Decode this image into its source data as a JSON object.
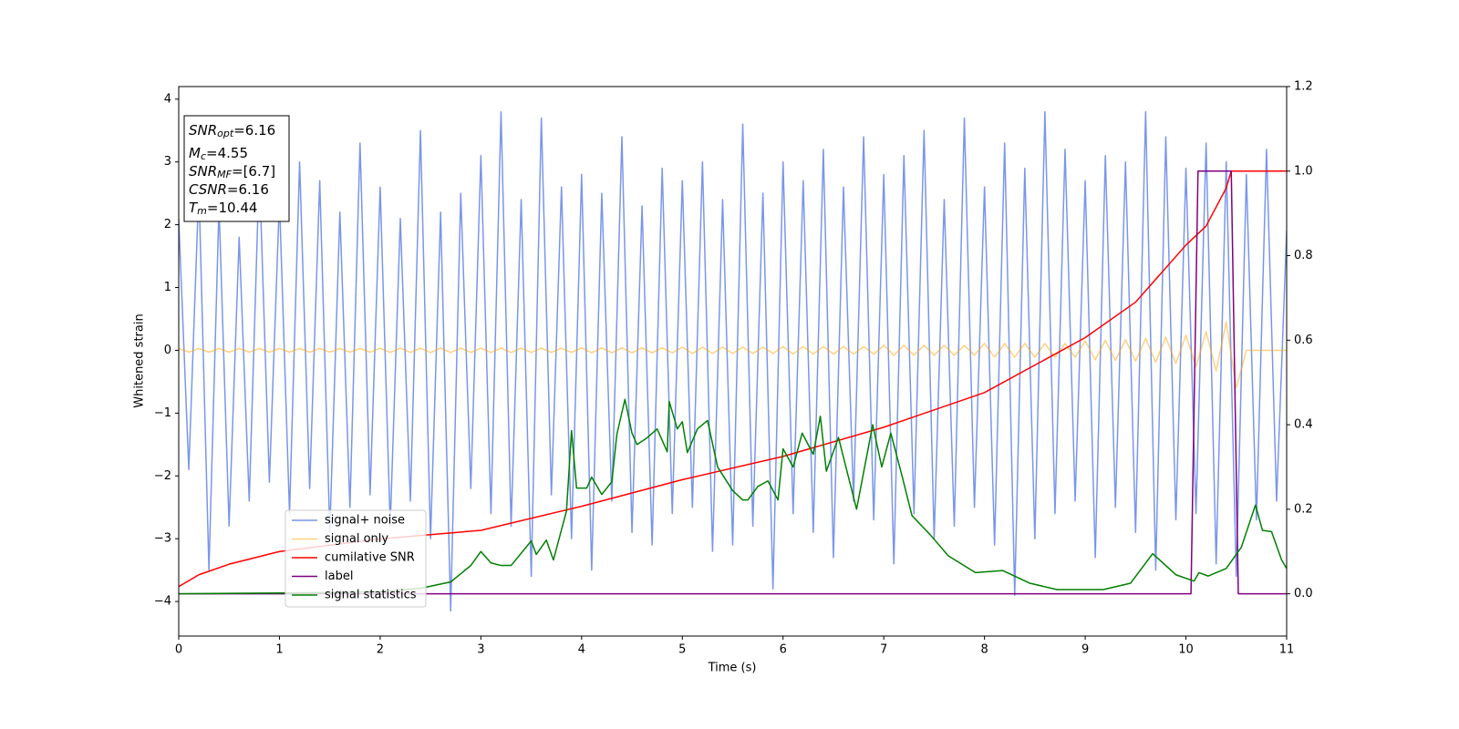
{
  "chart_data": {
    "type": "line",
    "xlabel": "Time (s)",
    "ylabel": "Whitened strain",
    "xlim": [
      0,
      11
    ],
    "xticks": [
      0,
      1,
      2,
      3,
      4,
      5,
      6,
      7,
      8,
      9,
      10,
      11
    ],
    "ylim": [
      -4.55,
      4.2
    ],
    "yticks": [
      {
        "value": -4,
        "label": "−4"
      },
      {
        "value": -3,
        "label": "−3"
      },
      {
        "value": -2,
        "label": "−2"
      },
      {
        "value": -1,
        "label": "−1"
      },
      0,
      1,
      2,
      3,
      4
    ],
    "y2lim": [
      -0.1,
      1.2
    ],
    "y2ticks": [
      {
        "value": 0,
        "label": "0.0"
      },
      {
        "value": 0.2,
        "label": "0.2"
      },
      {
        "value": 0.4,
        "label": "0.4"
      },
      {
        "value": 0.6,
        "label": "0.6"
      },
      {
        "value": 0.8,
        "label": "0.8"
      },
      {
        "value": 1,
        "label": "1.0"
      },
      {
        "value": 1.2,
        "label": "1.2"
      }
    ],
    "x": [
      0,
      0.1,
      0.2,
      0.3,
      0.4,
      0.5,
      0.6,
      0.7,
      0.8,
      0.9,
      1,
      1.1,
      1.2,
      1.3,
      1.4,
      1.5,
      1.6,
      1.7,
      1.8,
      1.9,
      2,
      2.1,
      2.2,
      2.3,
      2.4,
      2.5,
      2.6,
      2.7,
      2.8,
      2.9,
      3,
      3.1,
      3.2,
      3.3,
      3.4,
      3.5,
      3.6,
      3.7,
      3.8,
      3.9,
      4,
      4.1,
      4.2,
      4.3,
      4.4,
      4.5,
      4.6,
      4.7,
      4.8,
      4.9,
      5,
      5.1,
      5.2,
      5.3,
      5.4,
      5.5,
      5.6,
      5.7,
      5.8,
      5.9,
      6,
      6.1,
      6.2,
      6.3,
      6.4,
      6.5,
      6.6,
      6.7,
      6.8,
      6.9,
      7,
      7.1,
      7.2,
      7.3,
      7.4,
      7.5,
      7.6,
      7.7,
      7.8,
      7.9,
      8,
      8.1,
      8.2,
      8.3,
      8.4,
      8.5,
      8.6,
      8.7,
      8.8,
      8.9,
      9,
      9.1,
      9.2,
      9.3,
      9.4,
      9.5,
      9.6,
      9.7,
      9.8,
      9.9,
      10,
      10.1,
      10.2,
      10.3,
      10.4,
      10.5,
      10.6,
      10.7,
      10.8,
      10.9,
      11
    ],
    "series": [
      {
        "name": "signal+ noise",
        "color": "#4169e1",
        "values": [
          2.1,
          -1.9,
          2.6,
          -3.5,
          2.3,
          -2.8,
          1.8,
          -2.4,
          2.9,
          -2.1,
          2.4,
          -2.6,
          3.0,
          -2.2,
          2.7,
          -2.9,
          2.2,
          -2.5,
          3.3,
          -2.3,
          2.6,
          -2.8,
          2.1,
          -2.4,
          3.5,
          -3.0,
          2.2,
          -4.15,
          2.5,
          -2.2,
          3.1,
          -2.6,
          3.8,
          -2.8,
          2.4,
          -3.6,
          3.7,
          -2.3,
          2.6,
          -3.0,
          2.8,
          -3.5,
          2.5,
          -2.4,
          3.4,
          -2.9,
          2.3,
          -3.1,
          2.9,
          -2.6,
          2.7,
          -2.5,
          3.0,
          -3.2,
          2.4,
          -3.1,
          3.6,
          -2.8,
          2.5,
          -3.8,
          3.0,
          -2.6,
          2.7,
          -2.9,
          3.2,
          -3.3,
          2.6,
          -2.4,
          3.4,
          -2.7,
          2.8,
          -3.4,
          3.1,
          -2.6,
          3.5,
          -3.0,
          2.4,
          -2.8,
          3.7,
          -2.5,
          2.6,
          -3.1,
          3.3,
          -3.9,
          2.9,
          -3.0,
          3.8,
          -2.6,
          3.2,
          -2.4,
          2.7,
          -3.3,
          3.1,
          -2.5,
          3.0,
          -2.9,
          3.8,
          -3.5,
          3.4,
          -2.7,
          2.9,
          -2.6,
          3.3,
          -3.4,
          3.0,
          -3.6,
          2.8,
          -2.7,
          3.2,
          -2.4,
          1.9
        ]
      },
      {
        "name": "signal only",
        "color": "#ffa500",
        "values": [
          0.03,
          -0.03,
          0.03,
          -0.03,
          0.03,
          -0.03,
          0.03,
          -0.03,
          0.03,
          -0.03,
          0.03,
          -0.03,
          0.03,
          -0.03,
          0.03,
          -0.03,
          0.03,
          -0.03,
          0.03,
          -0.03,
          0.035,
          -0.035,
          0.035,
          -0.035,
          0.035,
          -0.035,
          0.035,
          -0.035,
          0.035,
          -0.035,
          0.035,
          -0.035,
          0.035,
          -0.035,
          0.035,
          -0.035,
          0.035,
          -0.035,
          0.035,
          -0.035,
          0.04,
          -0.04,
          0.04,
          -0.04,
          0.04,
          -0.04,
          0.04,
          -0.04,
          0.04,
          -0.04,
          0.05,
          -0.05,
          0.05,
          -0.05,
          0.05,
          -0.05,
          0.05,
          -0.05,
          0.05,
          -0.05,
          0.06,
          -0.06,
          0.06,
          -0.06,
          0.06,
          -0.06,
          0.06,
          -0.06,
          0.06,
          -0.06,
          0.08,
          -0.08,
          0.08,
          -0.08,
          0.08,
          -0.08,
          0.08,
          -0.08,
          0.08,
          -0.08,
          0.11,
          -0.11,
          0.11,
          -0.11,
          0.11,
          -0.11,
          0.11,
          -0.11,
          0.11,
          -0.11,
          0.15,
          -0.15,
          0.16,
          -0.16,
          0.17,
          -0.17,
          0.19,
          -0.19,
          0.21,
          -0.21,
          0.24,
          -0.26,
          0.3,
          -0.33,
          0.45,
          -0.6,
          0,
          0,
          0,
          0,
          0
        ]
      },
      {
        "name": "cumilative SNR",
        "color": "#ff0000",
        "axis": "y2",
        "x": [
          0,
          0.2,
          0.5,
          1,
          2,
          3,
          4,
          5,
          6,
          7,
          8,
          9,
          9.5,
          10,
          10.2,
          10.4,
          10.45,
          11
        ],
        "values": [
          0.017,
          0.045,
          0.07,
          0.1,
          0.13,
          0.15,
          0.207,
          0.27,
          0.325,
          0.394,
          0.476,
          0.606,
          0.69,
          0.825,
          0.87,
          0.96,
          1.0,
          1.0
        ]
      },
      {
        "name": "label",
        "color": "#800080",
        "axis": "y2",
        "x": [
          0,
          10.05,
          10.12,
          10.45,
          10.52,
          11
        ],
        "values": [
          0,
          0,
          1,
          1,
          0,
          0
        ]
      },
      {
        "name": "signal statistics",
        "color": "#008000",
        "axis": "y2",
        "x": [
          0,
          1,
          1.5,
          2,
          2.4,
          2.7,
          2.9,
          3,
          3.1,
          3.2,
          3.3,
          3.5,
          3.55,
          3.65,
          3.72,
          3.85,
          3.9,
          3.95,
          4.05,
          4.1,
          4.2,
          4.3,
          4.35,
          4.43,
          4.5,
          4.55,
          4.65,
          4.75,
          4.85,
          4.87,
          4.95,
          5,
          5.05,
          5.15,
          5.25,
          5.35,
          5.5,
          5.6,
          5.65,
          5.75,
          5.85,
          5.95,
          6,
          6.1,
          6.19,
          6.3,
          6.37,
          6.43,
          6.55,
          6.73,
          6.89,
          6.98,
          7.07,
          7.18,
          7.28,
          7.46,
          7.64,
          7.91,
          8.18,
          8.45,
          8.72,
          9.18,
          9.45,
          9.67,
          9.9,
          10.08,
          10.13,
          10.22,
          10.4,
          10.55,
          10.69,
          10.76,
          10.85,
          10.95,
          11
        ],
        "values": [
          0,
          0.002,
          0.003,
          0.005,
          0.013,
          0.028,
          0.067,
          0.1,
          0.073,
          0.067,
          0.067,
          0.125,
          0.093,
          0.127,
          0.08,
          0.196,
          0.386,
          0.25,
          0.25,
          0.276,
          0.235,
          0.265,
          0.377,
          0.46,
          0.38,
          0.353,
          0.369,
          0.39,
          0.336,
          0.455,
          0.39,
          0.407,
          0.334,
          0.39,
          0.41,
          0.3,
          0.244,
          0.222,
          0.222,
          0.254,
          0.267,
          0.222,
          0.343,
          0.3,
          0.38,
          0.33,
          0.42,
          0.29,
          0.37,
          0.2,
          0.4,
          0.3,
          0.38,
          0.28,
          0.185,
          0.14,
          0.09,
          0.05,
          0.055,
          0.025,
          0.01,
          0.01,
          0.025,
          0.095,
          0.045,
          0.03,
          0.05,
          0.042,
          0.06,
          0.11,
          0.21,
          0.15,
          0.147,
          0.08,
          0.06
        ]
      }
    ],
    "annotations": [
      {
        "main": "SNR",
        "sub": "opt",
        "value": "=6.16"
      },
      {
        "main": "M",
        "sub": "c",
        "value": "=4.55"
      },
      {
        "main": "SNR",
        "sub": "MF",
        "value": "=[6.7]"
      },
      {
        "main": "CSNR",
        "value": "=6.16"
      },
      {
        "main": "T",
        "sub": "m",
        "value": "=10.44"
      }
    ]
  }
}
